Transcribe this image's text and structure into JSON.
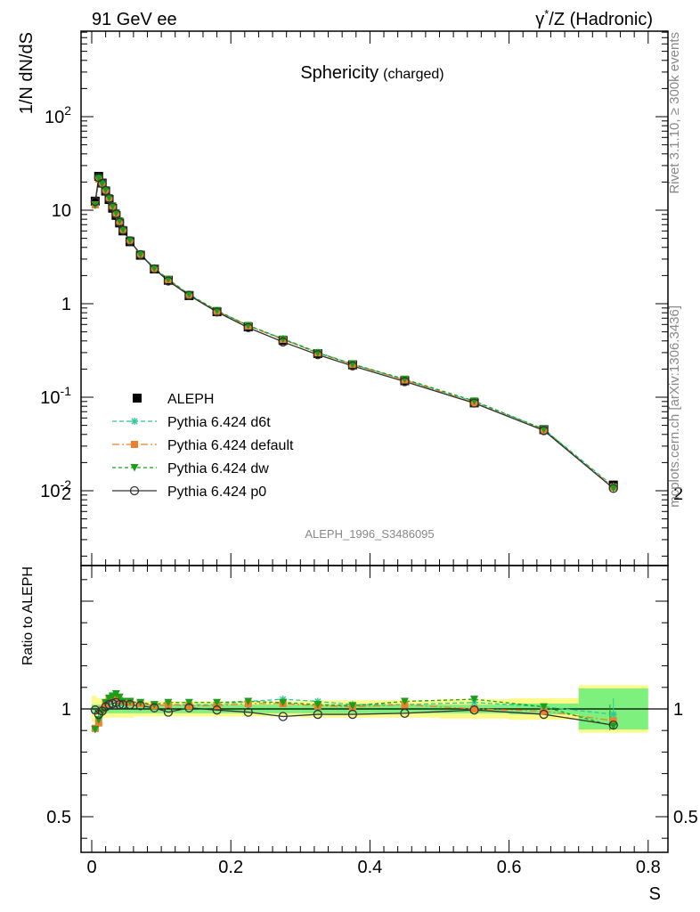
{
  "header": {
    "left": "91 GeV ee",
    "right_prefix": "γ",
    "right_sup": "*",
    "right_suffix": "/Z (Hadronic)"
  },
  "side": {
    "rivet": "Rivet 3.1.10, ≥ 300k events",
    "mcplots": "mcplots.cern.ch [arXiv:1306.3436]"
  },
  "plot_title": {
    "main": "Sphericity",
    "sub": "(charged)"
  },
  "analysis_label": "ALEPH_1996_S3486095",
  "legend": [
    {
      "label": "ALEPH"
    },
    {
      "label": "Pythia 6.424 d6t"
    },
    {
      "label": "Pythia 6.424 default"
    },
    {
      "label": "Pythia 6.424 dw"
    },
    {
      "label": "Pythia 6.424 p0"
    }
  ],
  "colors": {
    "data": "#000000",
    "d6t": "#2ec99a",
    "default": "#f07f2c",
    "dw": "#1a9f1a",
    "p0": "#333333",
    "band_inner": "#7ef07e",
    "band_outer": "#fbfb88"
  },
  "chart_data": [
    {
      "type": "line",
      "ylabel": "1/N dN/dS",
      "yscale": "log",
      "ylim": [
        0.002,
        700
      ],
      "xlim": [
        -0.02,
        0.8
      ],
      "ytick_labels": [
        "10^-2",
        "10^-1",
        "1",
        "10",
        "10^2"
      ],
      "x": [
        0.005,
        0.01,
        0.015,
        0.02,
        0.025,
        0.03,
        0.035,
        0.04,
        0.045,
        0.055,
        0.07,
        0.09,
        0.11,
        0.14,
        0.18,
        0.225,
        0.275,
        0.325,
        0.375,
        0.45,
        0.55,
        0.65,
        0.75
      ],
      "series": [
        {
          "name": "ALEPH",
          "values": [
            12.5,
            23.0,
            19.5,
            16.0,
            13.0,
            10.5,
            8.8,
            7.3,
            6.0,
            4.6,
            3.3,
            2.35,
            1.78,
            1.22,
            0.82,
            0.565,
            0.405,
            0.293,
            0.222,
            0.15,
            0.087,
            0.045,
            0.0115
          ]
        },
        {
          "name": "Pythia 6.424 d6t",
          "values": [
            11.3,
            22.0,
            19.3,
            16.2,
            13.4,
            11.0,
            9.2,
            7.5,
            6.15,
            4.75,
            3.38,
            2.38,
            1.81,
            1.245,
            0.838,
            0.585,
            0.423,
            0.303,
            0.226,
            0.153,
            0.0895,
            0.0455,
            0.0112
          ]
        },
        {
          "name": "Pythia 6.424 default",
          "values": [
            11.4,
            21.5,
            19.4,
            16.4,
            13.6,
            11.1,
            9.3,
            7.6,
            6.2,
            4.75,
            3.38,
            2.38,
            1.81,
            1.24,
            0.832,
            0.578,
            0.415,
            0.298,
            0.224,
            0.153,
            0.087,
            0.0445,
            0.0109
          ]
        },
        {
          "name": "Pythia 6.424 dw",
          "values": [
            11.3,
            21.8,
            19.2,
            16.5,
            13.6,
            11.1,
            9.4,
            7.7,
            6.2,
            4.78,
            3.4,
            2.4,
            1.83,
            1.255,
            0.845,
            0.585,
            0.418,
            0.298,
            0.226,
            0.156,
            0.091,
            0.0455,
            0.0106
          ]
        },
        {
          "name": "Pythia 6.424 p0",
          "values": [
            12.4,
            22.4,
            19.3,
            16.2,
            13.3,
            10.8,
            9.1,
            7.4,
            6.1,
            4.7,
            3.35,
            2.36,
            1.75,
            1.23,
            0.815,
            0.555,
            0.39,
            0.285,
            0.216,
            0.147,
            0.0865,
            0.044,
            0.0106
          ]
        }
      ]
    },
    {
      "type": "line",
      "xlabel": "S",
      "ylabel": "Ratio to ALEPH",
      "yscale": "linear",
      "ylim": [
        0.35,
        2.3
      ],
      "xlim": [
        -0.02,
        0.8
      ],
      "xtick_labels": [
        "0",
        "0.2",
        "0.4",
        "0.6",
        "0.8"
      ],
      "ytick_labels": [
        "0.5",
        "1",
        "2"
      ],
      "x": [
        0.005,
        0.01,
        0.015,
        0.02,
        0.025,
        0.03,
        0.035,
        0.04,
        0.045,
        0.055,
        0.07,
        0.09,
        0.11,
        0.14,
        0.18,
        0.225,
        0.275,
        0.325,
        0.375,
        0.45,
        0.55,
        0.65,
        0.75
      ],
      "series": [
        {
          "name": "Pythia 6.424 d6t",
          "values": [
            0.905,
            0.955,
            0.99,
            1.015,
            1.03,
            1.045,
            1.045,
            1.03,
            1.025,
            1.03,
            1.025,
            1.015,
            1.02,
            1.02,
            1.02,
            1.035,
            1.045,
            1.035,
            1.02,
            1.02,
            1.03,
            1.01,
            0.975
          ]
        },
        {
          "name": "Pythia 6.424 default",
          "values": [
            0.91,
            0.935,
            0.995,
            1.025,
            1.045,
            1.055,
            1.055,
            1.04,
            1.035,
            1.03,
            1.025,
            1.015,
            1.02,
            1.015,
            1.015,
            1.025,
            1.025,
            1.015,
            1.01,
            1.02,
            1.0,
            0.99,
            0.945
          ]
        },
        {
          "name": "Pythia 6.424 dw",
          "values": [
            0.905,
            0.95,
            0.985,
            1.03,
            1.05,
            1.06,
            1.07,
            1.055,
            1.035,
            1.035,
            1.03,
            1.02,
            1.03,
            1.03,
            1.03,
            1.035,
            1.03,
            1.02,
            1.015,
            1.035,
            1.045,
            1.01,
            0.92
          ]
        },
        {
          "name": "Pythia 6.424 p0",
          "values": [
            0.995,
            0.975,
            0.99,
            1.01,
            1.02,
            1.025,
            1.03,
            1.02,
            1.02,
            1.02,
            1.015,
            1.005,
            0.985,
            1.005,
            0.995,
            0.985,
            0.965,
            0.975,
            0.975,
            0.98,
            0.995,
            0.975,
            0.925
          ]
        }
      ],
      "bands": {
        "x_edges": [
          0.0,
          0.0075,
          0.0125,
          0.0175,
          0.0225,
          0.0275,
          0.0325,
          0.0375,
          0.0425,
          0.05,
          0.06,
          0.08,
          0.1,
          0.12,
          0.16,
          0.2,
          0.25,
          0.3,
          0.35,
          0.4,
          0.5,
          0.6,
          0.7,
          0.8
        ],
        "inner": [
          0.02,
          0.02,
          0.02,
          0.02,
          0.02,
          0.02,
          0.02,
          0.02,
          0.02,
          0.02,
          0.02,
          0.02,
          0.02,
          0.02,
          0.02,
          0.02,
          0.02,
          0.02,
          0.02,
          0.02,
          0.02,
          0.025,
          0.095
        ],
        "outer": [
          0.06,
          0.05,
          0.045,
          0.04,
          0.04,
          0.04,
          0.04,
          0.04,
          0.04,
          0.04,
          0.035,
          0.035,
          0.035,
          0.035,
          0.035,
          0.035,
          0.035,
          0.04,
          0.04,
          0.04,
          0.045,
          0.05,
          0.11
        ]
      }
    }
  ]
}
